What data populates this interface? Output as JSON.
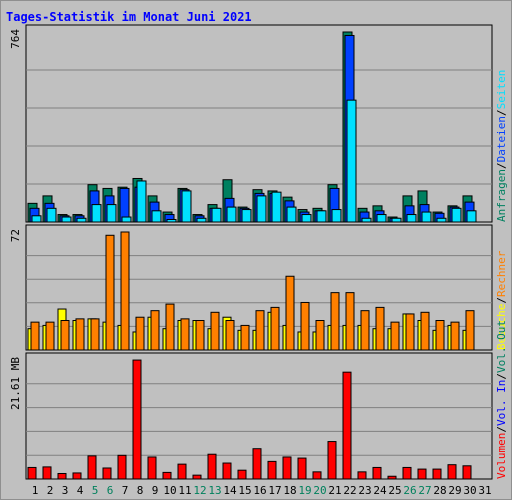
{
  "chart_data": {
    "type": "bar",
    "title": "Tages-Statistik im Monat Juni 2021",
    "categories": [
      "1",
      "2",
      "3",
      "4",
      "5",
      "6",
      "7",
      "8",
      "9",
      "10",
      "11",
      "12",
      "13",
      "14",
      "15",
      "16",
      "17",
      "18",
      "19",
      "20",
      "21",
      "22",
      "23",
      "24",
      "25",
      "26",
      "27",
      "28",
      "29",
      "30",
      "31"
    ],
    "weekend_days": [
      5,
      6,
      12,
      13,
      19,
      20,
      26,
      27
    ],
    "colors": {
      "title": "#0000ff",
      "weekend": "#00805c",
      "weekday": "#000000",
      "anfragen": "#008060",
      "dateien": "#0040ff",
      "seiten": "#00e0ff",
      "besuche": "#ffff00",
      "rechner": "#ff8000",
      "vol_out": "#008060",
      "vol_in": "#0000ff",
      "volumen": "#ff0000"
    },
    "panels": [
      {
        "id": "hits",
        "max_label": "764",
        "ylim": [
          0,
          764
        ],
        "legend": [
          {
            "label": "Anfragen",
            "color_key": "anfragen"
          },
          {
            "label": "/",
            "color_key": "weekday"
          },
          {
            "label": "Dateien",
            "color_key": "dateien"
          },
          {
            "label": "/",
            "color_key": "weekday"
          },
          {
            "label": "Seiten",
            "color_key": "seiten"
          }
        ],
        "series": [
          {
            "name": "Anfragen",
            "color_key": "anfragen",
            "values": [
              75,
              105,
              30,
              30,
              150,
              135,
              140,
              175,
              105,
              40,
              135,
              30,
              70,
              170,
              60,
              130,
              125,
              100,
              50,
              55,
              150,
              764,
              55,
              65,
              20,
              105,
              125,
              40,
              65,
              105,
              0
            ]
          },
          {
            "name": "Dateien",
            "color_key": "dateien",
            "values": [
              55,
              75,
              25,
              25,
              125,
              105,
              135,
              140,
              80,
              30,
              130,
              25,
              55,
              95,
              55,
              115,
              115,
              85,
              40,
              45,
              135,
              750,
              40,
              45,
              15,
              65,
              70,
              35,
              60,
              80,
              0
            ]
          },
          {
            "name": "Seiten",
            "color_key": "seiten",
            "values": [
              25,
              55,
              20,
              15,
              70,
              70,
              20,
              165,
              45,
              10,
              125,
              15,
              55,
              60,
              50,
              105,
              120,
              60,
              30,
              45,
              50,
              490,
              15,
              30,
              15,
              30,
              40,
              15,
              55,
              45,
              0
            ]
          }
        ]
      },
      {
        "id": "visits",
        "max_label": "72",
        "ylim": [
          0,
          72
        ],
        "legend": [
          {
            "label": "Besuche",
            "color_key": "besuche"
          },
          {
            "label": "/",
            "color_key": "weekday"
          },
          {
            "label": "Rechner",
            "color_key": "rechner"
          }
        ],
        "series": [
          {
            "name": "Besuche",
            "color_key": "besuche",
            "values": [
              13,
              15,
              25,
              18,
              19,
              17,
              15,
              11,
              20,
              13,
              18,
              18,
              13,
              20,
              12,
              12,
              23,
              15,
              11,
              11,
              15,
              15,
              15,
              13,
              13,
              22,
              18,
              12,
              15,
              12,
              0
            ]
          },
          {
            "name": "Rechner",
            "color_key": "rechner",
            "values": [
              17,
              17,
              18,
              19,
              19,
              70,
              72,
              20,
              24,
              28,
              19,
              18,
              23,
              18,
              15,
              24,
              26,
              45,
              29,
              18,
              35,
              35,
              24,
              26,
              17,
              22,
              23,
              18,
              17,
              24,
              0
            ]
          }
        ]
      },
      {
        "id": "volume",
        "max_label": "21.61 MB",
        "ylim": [
          0,
          21.61
        ],
        "legend": [
          {
            "label": "Volumen",
            "color_key": "volumen"
          },
          {
            "label": "/",
            "color_key": "weekday"
          },
          {
            "label": "Vol. In",
            "color_key": "vol_in"
          },
          {
            "label": "/",
            "color_key": "weekday"
          },
          {
            "label": "Vol. Out",
            "color_key": "vol_out"
          }
        ],
        "series": [
          {
            "name": "Volumen",
            "color_key": "volumen",
            "values": [
              2.1,
              2.2,
              1.0,
              1.1,
              4.2,
              2.0,
              4.3,
              21.6,
              4.0,
              1.2,
              2.7,
              0.7,
              4.5,
              2.9,
              1.6,
              5.5,
              3.2,
              4.0,
              3.8,
              1.3,
              6.8,
              19.4,
              1.3,
              2.1,
              0.5,
              2.1,
              1.8,
              1.8,
              2.6,
              2.4,
              0
            ]
          }
        ]
      }
    ]
  }
}
